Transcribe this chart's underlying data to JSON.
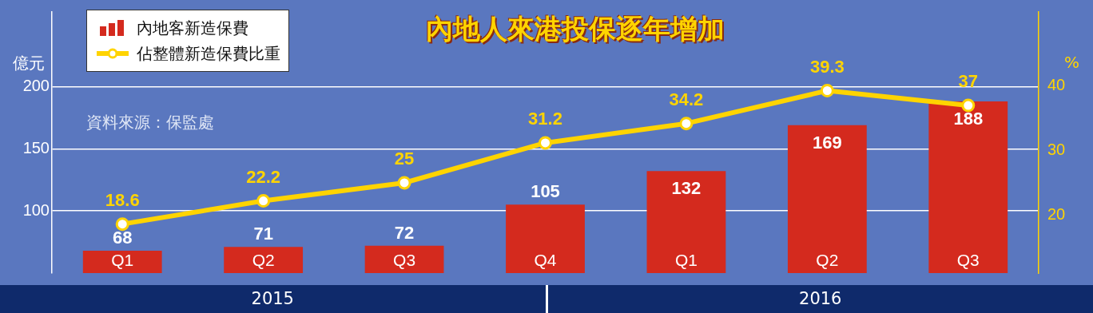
{
  "chart_data": {
    "type": "bar",
    "title": "內地人來港投保逐年增加",
    "ylabel": "億元",
    "y2label": "%",
    "categories": [
      "Q1",
      "Q2",
      "Q3",
      "Q4",
      "Q1",
      "Q2",
      "Q3"
    ],
    "series": [
      {
        "name": "內地客新造保費",
        "color": "#d42a1e",
        "values": [
          68,
          71,
          72,
          105,
          132,
          169,
          188
        ]
      },
      {
        "name": "佔整體新造保費比重",
        "type": "line",
        "axis": "y2",
        "color": "#ffd400",
        "marker": "circle",
        "values": [
          18.6,
          22.2,
          25,
          31.2,
          34.2,
          39.3,
          37
        ]
      }
    ],
    "ylim": [
      50,
      260
    ],
    "yticks": [
      100,
      150,
      200
    ],
    "y2lim": [
      11,
      51.5
    ],
    "y2ticks": [
      20,
      30,
      40
    ],
    "grid": "y",
    "legend": "top left",
    "data_labels": true,
    "annotations": [
      "資料來源：保監處",
      "2015",
      "2016"
    ]
  }
}
